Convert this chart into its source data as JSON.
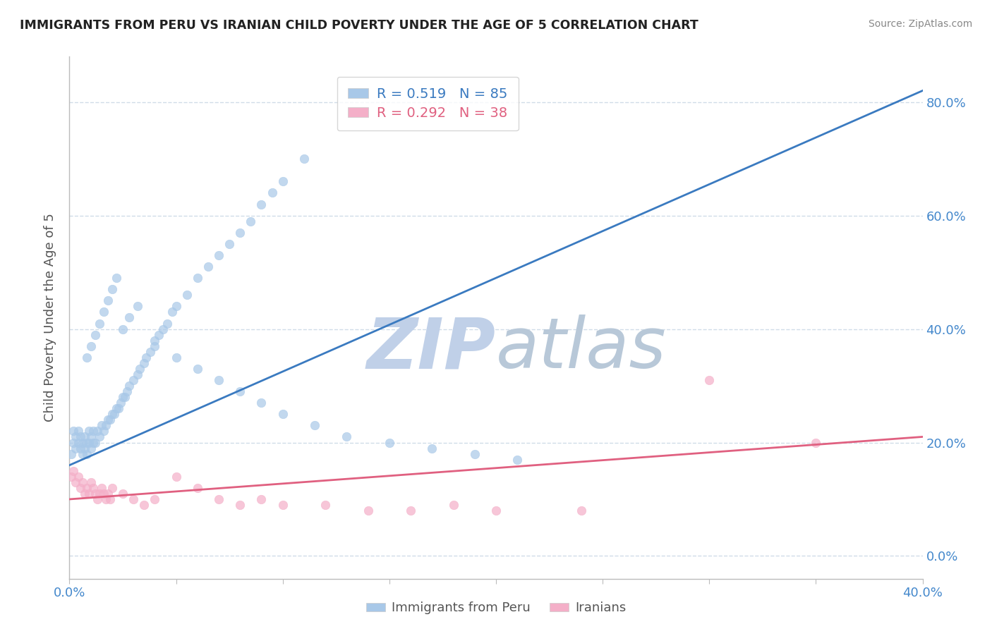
{
  "title": "IMMIGRANTS FROM PERU VS IRANIAN CHILD POVERTY UNDER THE AGE OF 5 CORRELATION CHART",
  "source": "Source: ZipAtlas.com",
  "ylabel": "Child Poverty Under the Age of 5",
  "legend_label1": "Immigrants from Peru",
  "legend_label2": "Iranians",
  "R1": 0.519,
  "N1": 85,
  "R2": 0.292,
  "N2": 38,
  "color1": "#a8c8e8",
  "color2": "#f4afc8",
  "trendline_color1": "#3a7ac0",
  "trendline_color2": "#e06080",
  "watermark_zip": "ZIP",
  "watermark_atlas": "atlas",
  "watermark_color_zip": "#c0d0e8",
  "watermark_color_atlas": "#b8c8d8",
  "xlim": [
    0.0,
    0.4
  ],
  "ylim": [
    -0.04,
    0.88
  ],
  "ytick_positions": [
    0.0,
    0.2,
    0.4,
    0.6,
    0.8
  ],
  "ytick_labels": [
    "0.0%",
    "20.0%",
    "40.0%",
    "60.0%",
    "80.0%"
  ],
  "xtick_positions": [
    0.0,
    0.05,
    0.1,
    0.15,
    0.2,
    0.25,
    0.3,
    0.35,
    0.4
  ],
  "xtick_labels": [
    "0.0%",
    "",
    "",
    "",
    "",
    "",
    "",
    "",
    "40.0%"
  ],
  "blue_x": [
    0.001,
    0.002,
    0.002,
    0.003,
    0.003,
    0.004,
    0.004,
    0.005,
    0.005,
    0.006,
    0.006,
    0.007,
    0.007,
    0.008,
    0.008,
    0.009,
    0.009,
    0.01,
    0.01,
    0.011,
    0.011,
    0.012,
    0.013,
    0.014,
    0.015,
    0.016,
    0.017,
    0.018,
    0.019,
    0.02,
    0.021,
    0.022,
    0.023,
    0.024,
    0.025,
    0.026,
    0.027,
    0.028,
    0.03,
    0.032,
    0.033,
    0.035,
    0.036,
    0.038,
    0.04,
    0.042,
    0.044,
    0.046,
    0.048,
    0.05,
    0.055,
    0.06,
    0.065,
    0.07,
    0.075,
    0.08,
    0.085,
    0.09,
    0.095,
    0.1,
    0.11,
    0.008,
    0.01,
    0.012,
    0.014,
    0.016,
    0.018,
    0.02,
    0.022,
    0.025,
    0.028,
    0.032,
    0.04,
    0.05,
    0.06,
    0.07,
    0.08,
    0.09,
    0.1,
    0.115,
    0.13,
    0.15,
    0.17,
    0.19,
    0.21
  ],
  "blue_y": [
    0.18,
    0.2,
    0.22,
    0.19,
    0.21,
    0.2,
    0.22,
    0.19,
    0.21,
    0.18,
    0.2,
    0.19,
    0.21,
    0.18,
    0.2,
    0.2,
    0.22,
    0.19,
    0.21,
    0.2,
    0.22,
    0.2,
    0.22,
    0.21,
    0.23,
    0.22,
    0.23,
    0.24,
    0.24,
    0.25,
    0.25,
    0.26,
    0.26,
    0.27,
    0.28,
    0.28,
    0.29,
    0.3,
    0.31,
    0.32,
    0.33,
    0.34,
    0.35,
    0.36,
    0.38,
    0.39,
    0.4,
    0.41,
    0.43,
    0.44,
    0.46,
    0.49,
    0.51,
    0.53,
    0.55,
    0.57,
    0.59,
    0.62,
    0.64,
    0.66,
    0.7,
    0.35,
    0.37,
    0.39,
    0.41,
    0.43,
    0.45,
    0.47,
    0.49,
    0.4,
    0.42,
    0.44,
    0.37,
    0.35,
    0.33,
    0.31,
    0.29,
    0.27,
    0.25,
    0.23,
    0.21,
    0.2,
    0.19,
    0.18,
    0.17
  ],
  "pink_x": [
    0.001,
    0.002,
    0.003,
    0.004,
    0.005,
    0.006,
    0.007,
    0.008,
    0.009,
    0.01,
    0.011,
    0.012,
    0.013,
    0.014,
    0.015,
    0.016,
    0.017,
    0.018,
    0.019,
    0.02,
    0.025,
    0.03,
    0.035,
    0.04,
    0.05,
    0.06,
    0.07,
    0.08,
    0.09,
    0.1,
    0.12,
    0.14,
    0.16,
    0.18,
    0.2,
    0.24,
    0.3,
    0.35
  ],
  "pink_y": [
    0.14,
    0.15,
    0.13,
    0.14,
    0.12,
    0.13,
    0.11,
    0.12,
    0.11,
    0.13,
    0.12,
    0.11,
    0.1,
    0.11,
    0.12,
    0.11,
    0.1,
    0.11,
    0.1,
    0.12,
    0.11,
    0.1,
    0.09,
    0.1,
    0.14,
    0.12,
    0.1,
    0.09,
    0.1,
    0.09,
    0.09,
    0.08,
    0.08,
    0.09,
    0.08,
    0.08,
    0.31,
    0.2
  ],
  "trendline1_x": [
    0.0,
    0.4
  ],
  "trendline1_y": [
    0.16,
    0.82
  ],
  "trendline2_x": [
    0.0,
    0.4
  ],
  "trendline2_y": [
    0.1,
    0.21
  ],
  "background_color": "#ffffff",
  "grid_color": "#d0dce8",
  "title_color": "#222222",
  "axis_label_color": "#555555",
  "tick_color": "#4488cc",
  "right_tick_color": "#4488cc"
}
